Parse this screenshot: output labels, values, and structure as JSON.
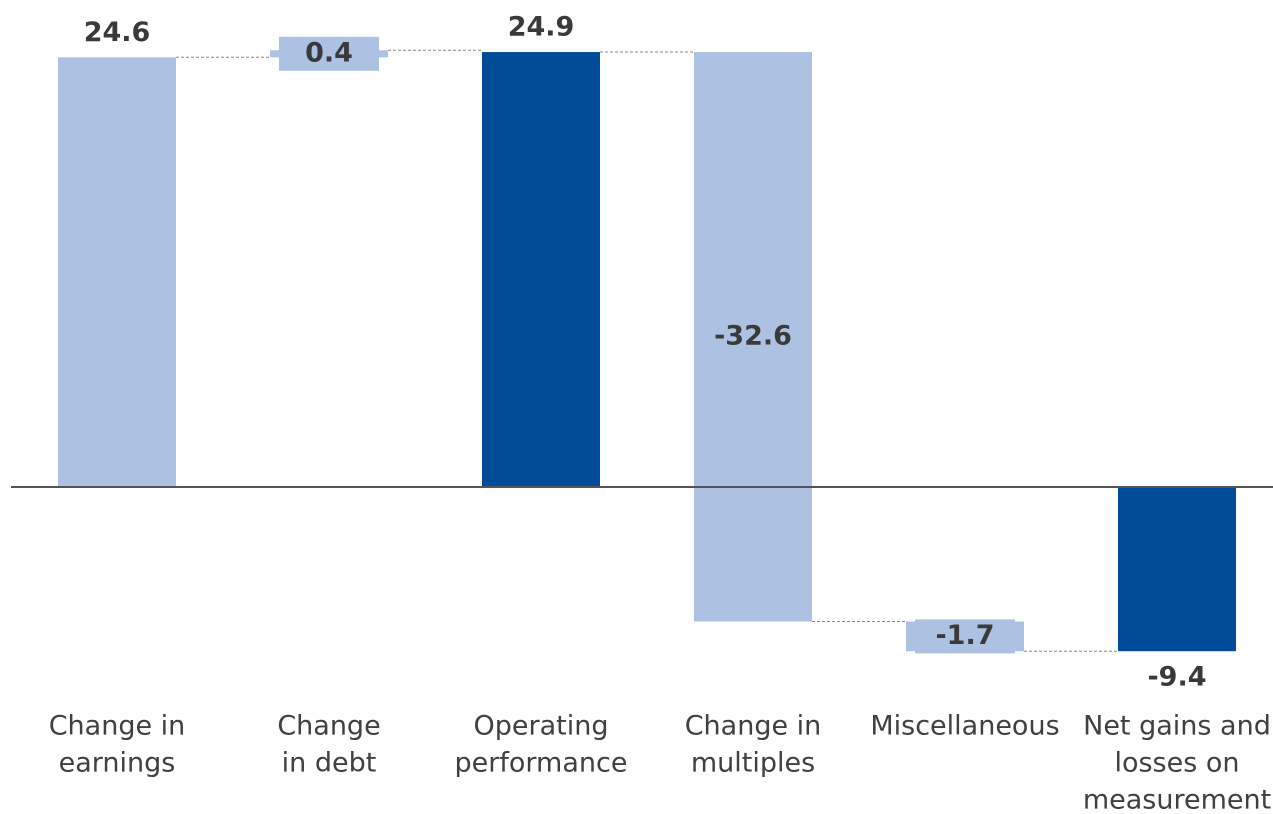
{
  "chart_data": {
    "type": "waterfall",
    "categories": [
      [
        "Change in",
        "earnings"
      ],
      [
        "Change",
        "in debt"
      ],
      [
        "Operating",
        "performance"
      ],
      [
        "Change in",
        "multiples"
      ],
      [
        "Miscellaneous"
      ],
      [
        "Net gains and",
        "losses on",
        "measurement"
      ]
    ],
    "values": [
      24.6,
      0.4,
      24.9,
      -32.6,
      -1.7,
      -9.4
    ],
    "totals": [
      false,
      false,
      true,
      false,
      false,
      true
    ],
    "colors": {
      "step": "#adc2e3",
      "total": "#004c99"
    },
    "ylim": [
      -10,
      25
    ]
  }
}
